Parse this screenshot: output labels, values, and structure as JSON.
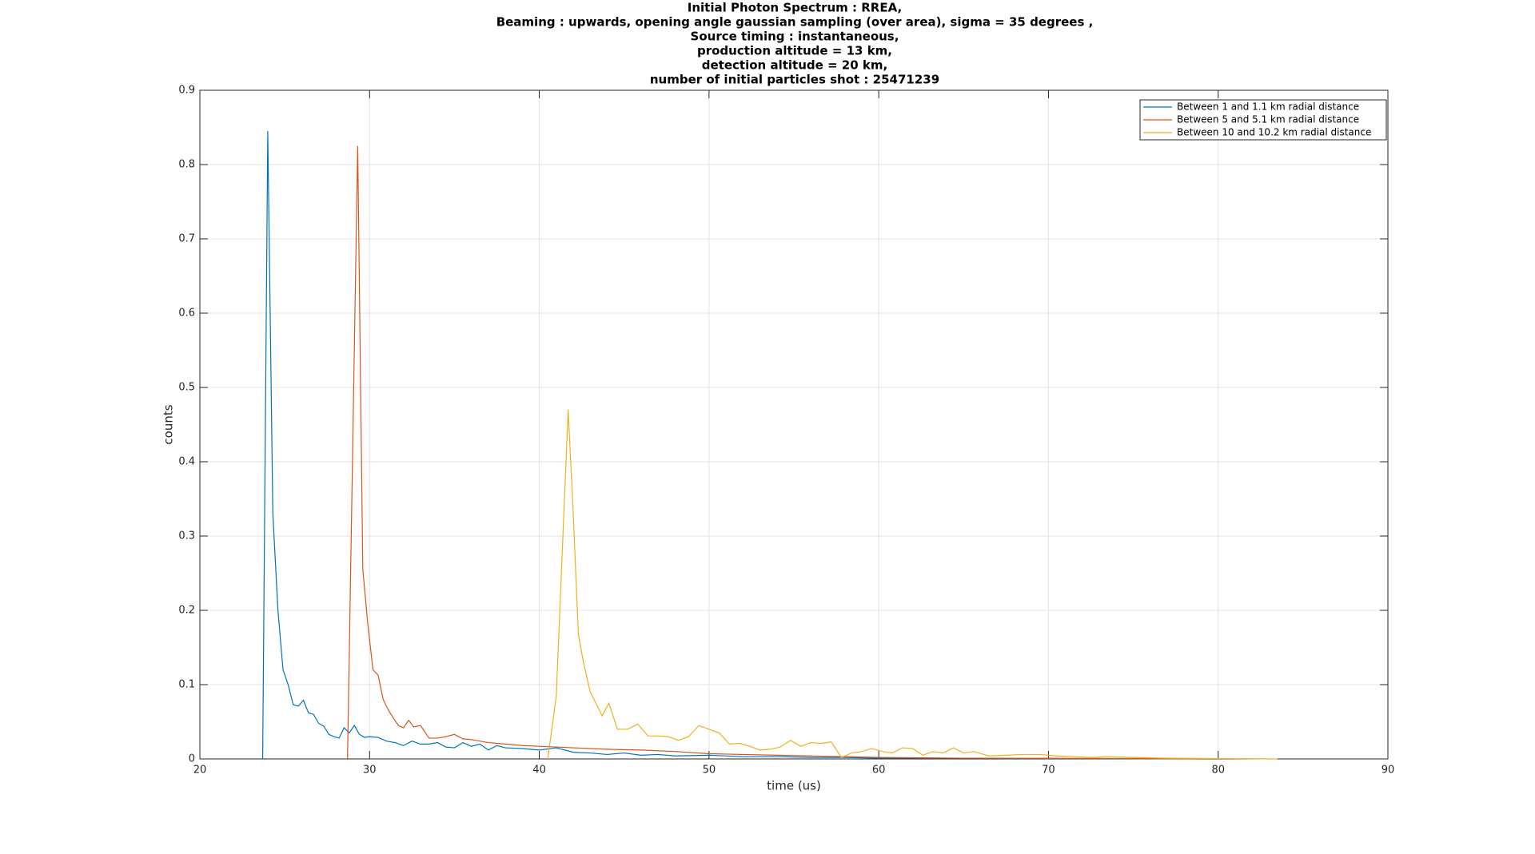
{
  "chart_data": {
    "type": "line",
    "title": [
      "Initial Photon Spectrum : RREA,",
      "Beaming : upwards, opening angle gaussian sampling (over area), sigma = 35 degrees ,",
      "Source timing : instantaneous,",
      "production altitude = 13 km,",
      "detection altitude = 20 km,",
      "number of initial particles shot : 25471239"
    ],
    "xlabel": "time (us)",
    "ylabel": "counts",
    "xlim": [
      20,
      90
    ],
    "ylim": [
      0,
      0.9
    ],
    "xticks": [
      20,
      30,
      40,
      50,
      60,
      70,
      80,
      90
    ],
    "yticks": [
      0,
      0.1,
      0.2,
      0.3,
      0.4,
      0.5,
      0.6,
      0.7,
      0.8,
      0.9
    ],
    "grid": true,
    "legend_position": "northeast",
    "series": [
      {
        "name": "Between 1 and 1.1 km radial distance",
        "color": "#0072bd",
        "x": [
          23.7,
          24.0,
          24.3,
          24.6,
          24.9,
          25.2,
          25.5,
          25.8,
          26.1,
          26.4,
          26.7,
          27.0,
          27.3,
          27.6,
          27.9,
          28.2,
          28.5,
          28.8,
          29.1,
          29.4,
          29.7,
          30.0,
          30.5,
          31.0,
          31.5,
          32.0,
          32.5,
          33.0,
          33.5,
          34.0,
          34.5,
          35.0,
          35.5,
          36.0,
          36.5,
          37.0,
          37.5,
          38.0,
          39.0,
          40.0,
          41.0,
          42.0,
          43.0,
          44.0,
          45.0,
          46.0,
          47.0,
          48.0,
          50.0,
          52.0,
          54.0,
          56.0,
          58.0,
          60.0,
          62.0,
          65.0,
          70.0,
          75.0,
          79.5
        ],
        "values": [
          0,
          0.845,
          0.33,
          0.2,
          0.12,
          0.1,
          0.073,
          0.071,
          0.079,
          0.062,
          0.06,
          0.048,
          0.044,
          0.033,
          0.03,
          0.028,
          0.042,
          0.035,
          0.045,
          0.033,
          0.029,
          0.03,
          0.029,
          0.024,
          0.022,
          0.018,
          0.024,
          0.02,
          0.02,
          0.022,
          0.016,
          0.015,
          0.022,
          0.017,
          0.02,
          0.012,
          0.018,
          0.015,
          0.014,
          0.012,
          0.015,
          0.009,
          0.008,
          0.006,
          0.008,
          0.005,
          0.006,
          0.004,
          0.005,
          0.003,
          0.003,
          0.002,
          0.002,
          0.001,
          0.001,
          0.001,
          0.0005,
          0.0003,
          0
        ]
      },
      {
        "name": "Between 5 and 5.1 km radial distance",
        "color": "#d95319",
        "x": [
          28.7,
          29.3,
          29.6,
          29.9,
          30.2,
          30.5,
          30.8,
          31.1,
          31.4,
          31.7,
          32.0,
          32.3,
          32.6,
          33.0,
          33.5,
          34.0,
          34.5,
          35.0,
          35.5,
          36.0,
          37.0,
          38.0,
          39.0,
          40.0,
          42.0,
          44.0,
          46.0,
          48.0,
          50.0,
          52.0,
          54.0,
          56.0,
          58.0,
          60.0,
          65.0,
          70.0,
          75.0,
          79.5
        ],
        "values": [
          0,
          0.825,
          0.255,
          0.18,
          0.12,
          0.113,
          0.08,
          0.066,
          0.055,
          0.045,
          0.042,
          0.052,
          0.043,
          0.045,
          0.028,
          0.028,
          0.03,
          0.033,
          0.027,
          0.026,
          0.022,
          0.02,
          0.018,
          0.017,
          0.015,
          0.013,
          0.012,
          0.01,
          0.007,
          0.006,
          0.005,
          0.004,
          0.003,
          0.002,
          0.001,
          0.0008,
          0.0005,
          0
        ]
      },
      {
        "name": "Between 10 and 10.2 km radial distance",
        "color": "#edb120",
        "x": [
          40.5,
          41.0,
          41.3,
          41.7,
          42.0,
          42.3,
          42.6,
          43.0,
          43.4,
          43.7,
          44.1,
          44.6,
          45.2,
          45.8,
          46.4,
          47.0,
          47.6,
          48.2,
          48.8,
          49.4,
          50.0,
          50.6,
          51.2,
          51.8,
          52.4,
          53.0,
          53.6,
          54.2,
          54.8,
          55.4,
          56.0,
          56.6,
          57.2,
          57.8,
          58.4,
          59.0,
          59.6,
          60.2,
          60.8,
          61.4,
          62.0,
          62.6,
          63.2,
          63.8,
          64.4,
          65.0,
          65.6,
          66.5,
          67.5,
          68.5,
          69.5,
          70.5,
          71.5,
          72.5,
          73.5,
          75.0,
          77.0,
          80.0,
          83.5
        ],
        "values": [
          0,
          0.085,
          0.25,
          0.47,
          0.33,
          0.168,
          0.13,
          0.09,
          0.072,
          0.058,
          0.075,
          0.04,
          0.04,
          0.047,
          0.031,
          0.031,
          0.03,
          0.025,
          0.03,
          0.045,
          0.04,
          0.035,
          0.02,
          0.021,
          0.017,
          0.012,
          0.013,
          0.016,
          0.025,
          0.017,
          0.022,
          0.021,
          0.023,
          0.002,
          0.008,
          0.01,
          0.014,
          0.01,
          0.008,
          0.015,
          0.014,
          0.005,
          0.01,
          0.008,
          0.015,
          0.008,
          0.01,
          0.004,
          0.005,
          0.006,
          0.006,
          0.004,
          0.003,
          0.002,
          0.003,
          0.002,
          0.001,
          0.0005,
          0
        ]
      }
    ]
  }
}
